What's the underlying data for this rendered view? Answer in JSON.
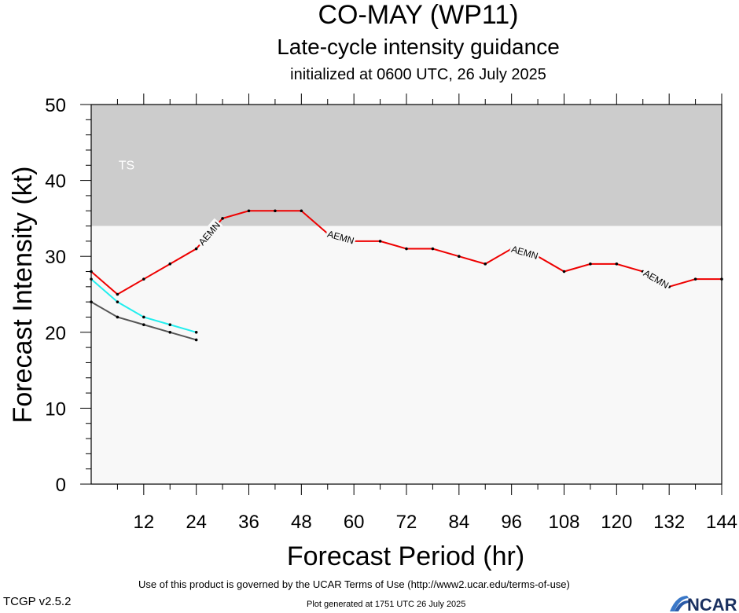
{
  "header": {
    "title": "CO-MAY (WP11)",
    "subtitle": "Late-cycle intensity guidance",
    "init_line": "initialized at 0600 UTC, 26 July 2025"
  },
  "footer": {
    "terms": "Use of this product is governed by the UCAR Terms of Use (http://www2.ucar.edu/terms-of-use)",
    "generated": "Plot generated at 1751 UTC   26 July 2025",
    "version": "TCGP v2.5.2",
    "logo_text": "NCAR"
  },
  "chart_data": {
    "type": "line",
    "xlabel": "Forecast Period (hr)",
    "ylabel": "Forecast Intensity (kt)",
    "xlim": [
      0,
      144
    ],
    "ylim": [
      0,
      50
    ],
    "x_ticks": [
      12,
      24,
      36,
      48,
      60,
      72,
      84,
      96,
      108,
      120,
      132,
      144
    ],
    "y_ticks": [
      0,
      10,
      20,
      30,
      40,
      50
    ],
    "bands": [
      {
        "label": "TS",
        "from": 34,
        "to": 50,
        "color": "#cccccc"
      },
      {
        "label": "",
        "from": 0,
        "to": 34,
        "color": "#f8f8f8"
      }
    ],
    "series": [
      {
        "name": "AEMN",
        "color": "#ee0000",
        "x": [
          0,
          6,
          12,
          18,
          24,
          30,
          36,
          42,
          48,
          54,
          60,
          66,
          72,
          78,
          84,
          90,
          96,
          102,
          108,
          114,
          120,
          126,
          132,
          138,
          144
        ],
        "y": [
          28,
          25,
          27,
          29,
          31,
          35,
          36,
          36,
          36,
          33,
          32,
          32,
          31,
          31,
          30,
          29,
          31,
          30,
          28,
          29,
          29,
          28,
          26,
          27,
          27
        ],
        "labels_at": [
          24,
          54,
          96,
          126
        ]
      },
      {
        "name": "",
        "color": "#22eeee",
        "x": [
          0,
          6,
          12,
          18,
          24
        ],
        "y": [
          27,
          24,
          22,
          21,
          20
        ]
      },
      {
        "name": "",
        "color": "#555555",
        "x": [
          0,
          6,
          12,
          18,
          24
        ],
        "y": [
          24,
          22,
          21,
          20,
          19
        ]
      }
    ]
  }
}
